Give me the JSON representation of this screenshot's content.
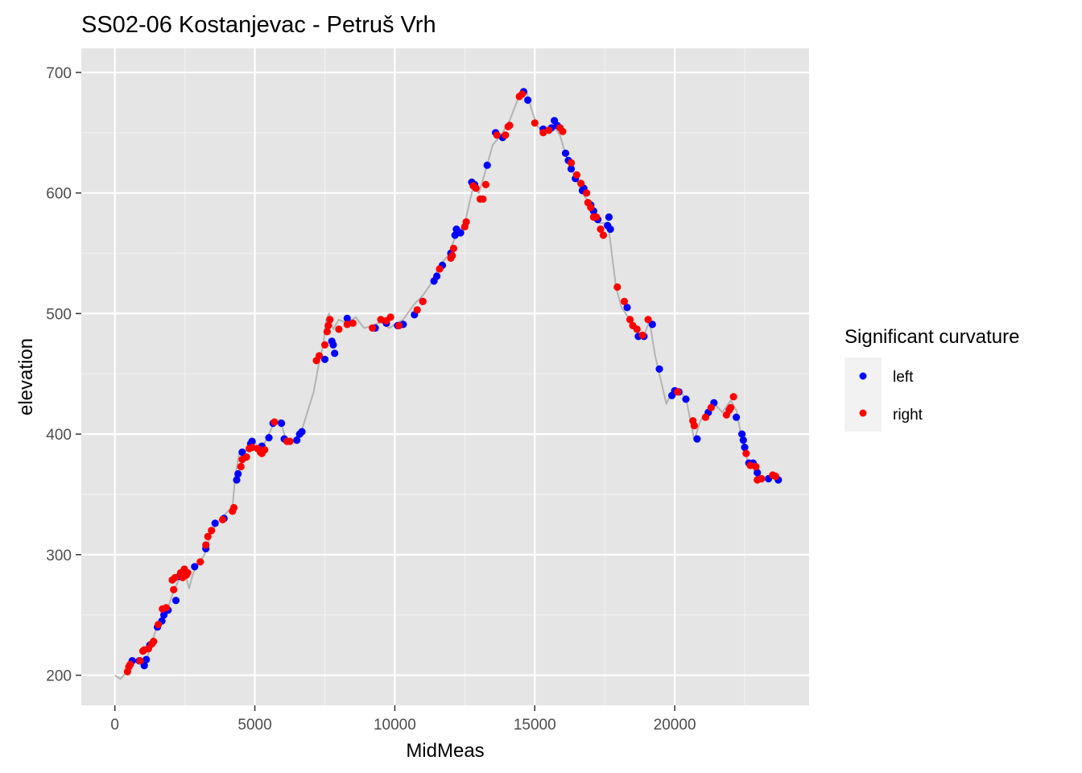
{
  "chart_data": {
    "type": "scatter",
    "title": "SS02-06 Kostanjevac - Petruš Vrh",
    "xlabel": "MidMeas",
    "ylabel": "elevation",
    "xlim": [
      -1200,
      24800
    ],
    "ylim": [
      175,
      720
    ],
    "x_ticks": [
      0,
      5000,
      10000,
      15000,
      20000
    ],
    "x_tick_labels": [
      "0",
      "5000",
      "10000",
      "15000",
      "20000"
    ],
    "y_ticks": [
      200,
      300,
      400,
      500,
      600,
      700
    ],
    "y_tick_labels": [
      "200",
      "300",
      "400",
      "500",
      "600",
      "700"
    ],
    "grid": true,
    "background": "#e5e5e5",
    "legend": {
      "title": "Significant curvature",
      "position": "right",
      "entries": [
        {
          "label": "left",
          "color": "#0000ff"
        },
        {
          "label": "right",
          "color": "#ff0000"
        }
      ]
    },
    "profile_line": {
      "color": "#b3b3b3",
      "points": [
        [
          0,
          200
        ],
        [
          200,
          197
        ],
        [
          400,
          202
        ],
        [
          600,
          210
        ],
        [
          900,
          212
        ],
        [
          1100,
          210
        ],
        [
          1300,
          226
        ],
        [
          1500,
          240
        ],
        [
          1700,
          250
        ],
        [
          1900,
          256
        ],
        [
          2100,
          270
        ],
        [
          2300,
          280
        ],
        [
          2500,
          285
        ],
        [
          2650,
          272
        ],
        [
          2800,
          285
        ],
        [
          3000,
          293
        ],
        [
          3200,
          300
        ],
        [
          3400,
          315
        ],
        [
          3600,
          325
        ],
        [
          3800,
          330
        ],
        [
          4000,
          335
        ],
        [
          4200,
          340
        ],
        [
          4300,
          365
        ],
        [
          4450,
          385
        ],
        [
          4600,
          384
        ],
        [
          4800,
          390
        ],
        [
          5000,
          393
        ],
        [
          5200,
          385
        ],
        [
          5500,
          400
        ],
        [
          5700,
          410
        ],
        [
          5900,
          412
        ],
        [
          6100,
          396
        ],
        [
          6300,
          393
        ],
        [
          6500,
          398
        ],
        [
          6700,
          405
        ],
        [
          6900,
          420
        ],
        [
          7100,
          435
        ],
        [
          7300,
          460
        ],
        [
          7450,
          475
        ],
        [
          7550,
          495
        ],
        [
          7650,
          500
        ],
        [
          7800,
          487
        ],
        [
          8000,
          495
        ],
        [
          8300,
          492
        ],
        [
          8600,
          497
        ],
        [
          8900,
          488
        ],
        [
          9200,
          490
        ],
        [
          9500,
          493
        ],
        [
          9800,
          488
        ],
        [
          10000,
          491
        ],
        [
          10300,
          495
        ],
        [
          10700,
          508
        ],
        [
          11000,
          515
        ],
        [
          11300,
          525
        ],
        [
          11600,
          540
        ],
        [
          11900,
          548
        ],
        [
          12200,
          566
        ],
        [
          12500,
          575
        ],
        [
          12800,
          605
        ],
        [
          13000,
          600
        ],
        [
          13200,
          615
        ],
        [
          13500,
          640
        ],
        [
          13800,
          648
        ],
        [
          14100,
          660
        ],
        [
          14400,
          678
        ],
        [
          14700,
          684
        ],
        [
          14900,
          668
        ],
        [
          15100,
          655
        ],
        [
          15400,
          650
        ],
        [
          15700,
          655
        ],
        [
          15900,
          648
        ],
        [
          16100,
          632
        ],
        [
          16400,
          615
        ],
        [
          16700,
          600
        ],
        [
          17000,
          590
        ],
        [
          17300,
          575
        ],
        [
          17600,
          575
        ],
        [
          17700,
          560
        ],
        [
          17900,
          522
        ],
        [
          18100,
          505
        ],
        [
          18400,
          495
        ],
        [
          18700,
          483
        ],
        [
          18900,
          482
        ],
        [
          19100,
          494
        ],
        [
          19300,
          465
        ],
        [
          19500,
          445
        ],
        [
          19700,
          425
        ],
        [
          19900,
          435
        ],
        [
          20100,
          437
        ],
        [
          20400,
          430
        ],
        [
          20700,
          395
        ],
        [
          20900,
          410
        ],
        [
          21100,
          418
        ],
        [
          21400,
          426
        ],
        [
          21700,
          418
        ],
        [
          22000,
          428
        ],
        [
          22200,
          420
        ],
        [
          22400,
          395
        ],
        [
          22600,
          378
        ],
        [
          22900,
          368
        ],
        [
          23200,
          363
        ],
        [
          23500,
          365
        ],
        [
          23700,
          362
        ]
      ]
    },
    "series": [
      {
        "name": "left",
        "color": "#0000ff",
        "points": [
          [
            620,
            212
          ],
          [
            870,
            212
          ],
          [
            1050,
            208
          ],
          [
            1120,
            213
          ],
          [
            1250,
            225
          ],
          [
            1520,
            240
          ],
          [
            1680,
            245
          ],
          [
            1750,
            250
          ],
          [
            1900,
            254
          ],
          [
            2180,
            262
          ],
          [
            2300,
            282
          ],
          [
            2850,
            290
          ],
          [
            3250,
            305
          ],
          [
            3580,
            326
          ],
          [
            3900,
            330
          ],
          [
            4350,
            362
          ],
          [
            4400,
            367
          ],
          [
            4550,
            385
          ],
          [
            4850,
            392
          ],
          [
            4900,
            394
          ],
          [
            5250,
            390
          ],
          [
            5500,
            397
          ],
          [
            5650,
            409
          ],
          [
            5950,
            409
          ],
          [
            6050,
            396
          ],
          [
            6500,
            395
          ],
          [
            6600,
            400
          ],
          [
            6680,
            402
          ],
          [
            7500,
            462
          ],
          [
            7750,
            477
          ],
          [
            7800,
            474
          ],
          [
            7850,
            467
          ],
          [
            8300,
            496
          ],
          [
            9300,
            488
          ],
          [
            9700,
            492
          ],
          [
            10100,
            490
          ],
          [
            10300,
            491
          ],
          [
            10700,
            499
          ],
          [
            11000,
            510
          ],
          [
            11400,
            527
          ],
          [
            11500,
            531
          ],
          [
            11700,
            540
          ],
          [
            12000,
            550
          ],
          [
            12150,
            565
          ],
          [
            12200,
            570
          ],
          [
            12350,
            567
          ],
          [
            12750,
            609
          ],
          [
            12850,
            607
          ],
          [
            13300,
            623
          ],
          [
            13600,
            650
          ],
          [
            13850,
            646
          ],
          [
            14600,
            684
          ],
          [
            14750,
            677
          ],
          [
            15300,
            653
          ],
          [
            15600,
            654
          ],
          [
            15700,
            660
          ],
          [
            15800,
            656
          ],
          [
            16100,
            633
          ],
          [
            16200,
            627
          ],
          [
            16300,
            620
          ],
          [
            16450,
            612
          ],
          [
            16700,
            602
          ],
          [
            16750,
            604
          ],
          [
            17000,
            590
          ],
          [
            17100,
            585
          ],
          [
            17250,
            578
          ],
          [
            17600,
            573
          ],
          [
            17650,
            580
          ],
          [
            17700,
            570
          ],
          [
            18300,
            505
          ],
          [
            18700,
            481
          ],
          [
            18900,
            481
          ],
          [
            19200,
            491
          ],
          [
            19450,
            454
          ],
          [
            19900,
            432
          ],
          [
            20000,
            436
          ],
          [
            20150,
            435
          ],
          [
            20400,
            429
          ],
          [
            20800,
            396
          ],
          [
            21200,
            418
          ],
          [
            21400,
            426
          ],
          [
            21950,
            420
          ],
          [
            22200,
            414
          ],
          [
            22400,
            400
          ],
          [
            22450,
            395
          ],
          [
            22500,
            389
          ],
          [
            22650,
            376
          ],
          [
            22800,
            376
          ],
          [
            22950,
            368
          ],
          [
            23350,
            363
          ],
          [
            23700,
            362
          ]
        ]
      },
      {
        "name": "right",
        "color": "#ff0000",
        "points": [
          [
            450,
            203
          ],
          [
            500,
            207
          ],
          [
            550,
            209
          ],
          [
            900,
            212
          ],
          [
            1000,
            220
          ],
          [
            1050,
            221
          ],
          [
            1200,
            222
          ],
          [
            1320,
            226
          ],
          [
            1380,
            228
          ],
          [
            1550,
            242
          ],
          [
            1700,
            255
          ],
          [
            1830,
            256
          ],
          [
            2050,
            279
          ],
          [
            2100,
            271
          ],
          [
            2150,
            281
          ],
          [
            2350,
            285
          ],
          [
            2420,
            281
          ],
          [
            2480,
            288
          ],
          [
            2550,
            283
          ],
          [
            2600,
            285
          ],
          [
            3050,
            294
          ],
          [
            3250,
            308
          ],
          [
            3320,
            315
          ],
          [
            3450,
            320
          ],
          [
            3850,
            329
          ],
          [
            4200,
            336
          ],
          [
            4250,
            339
          ],
          [
            4500,
            373
          ],
          [
            4550,
            379
          ],
          [
            4700,
            381
          ],
          [
            4800,
            388
          ],
          [
            4900,
            389
          ],
          [
            5100,
            388
          ],
          [
            5200,
            385
          ],
          [
            5250,
            384
          ],
          [
            5350,
            387
          ],
          [
            5700,
            410
          ],
          [
            6150,
            394
          ],
          [
            6250,
            394
          ],
          [
            7200,
            461
          ],
          [
            7300,
            465
          ],
          [
            7500,
            474
          ],
          [
            7580,
            485
          ],
          [
            7620,
            490
          ],
          [
            7680,
            495
          ],
          [
            8000,
            487
          ],
          [
            8300,
            491
          ],
          [
            8500,
            492
          ],
          [
            9200,
            488
          ],
          [
            9500,
            495
          ],
          [
            9700,
            494
          ],
          [
            9850,
            497
          ],
          [
            10150,
            490
          ],
          [
            10800,
            503
          ],
          [
            11000,
            510
          ],
          [
            11600,
            537
          ],
          [
            12000,
            546
          ],
          [
            12050,
            548
          ],
          [
            12100,
            554
          ],
          [
            12500,
            572
          ],
          [
            12550,
            576
          ],
          [
            12800,
            606
          ],
          [
            12900,
            604
          ],
          [
            13050,
            595
          ],
          [
            13150,
            595
          ],
          [
            13250,
            607
          ],
          [
            13650,
            648
          ],
          [
            13950,
            648
          ],
          [
            14050,
            655
          ],
          [
            14100,
            656
          ],
          [
            14450,
            680
          ],
          [
            14550,
            682
          ],
          [
            15000,
            658
          ],
          [
            15300,
            650
          ],
          [
            15500,
            652
          ],
          [
            15900,
            654
          ],
          [
            16000,
            651
          ],
          [
            16300,
            625
          ],
          [
            16500,
            615
          ],
          [
            16650,
            608
          ],
          [
            16850,
            600
          ],
          [
            16900,
            592
          ],
          [
            17000,
            588
          ],
          [
            17100,
            580
          ],
          [
            17200,
            580
          ],
          [
            17350,
            570
          ],
          [
            17450,
            565
          ],
          [
            17950,
            522
          ],
          [
            18200,
            510
          ],
          [
            18400,
            495
          ],
          [
            18500,
            490
          ],
          [
            18650,
            487
          ],
          [
            18850,
            482
          ],
          [
            19050,
            495
          ],
          [
            20100,
            435
          ],
          [
            20650,
            411
          ],
          [
            20700,
            407
          ],
          [
            21100,
            414
          ],
          [
            21300,
            422
          ],
          [
            21850,
            416
          ],
          [
            21950,
            420
          ],
          [
            22000,
            422
          ],
          [
            22100,
            431
          ],
          [
            22550,
            384
          ],
          [
            22700,
            374
          ],
          [
            22900,
            373
          ],
          [
            22950,
            362
          ],
          [
            23100,
            363
          ],
          [
            23500,
            366
          ],
          [
            23600,
            365
          ]
        ]
      }
    ]
  }
}
